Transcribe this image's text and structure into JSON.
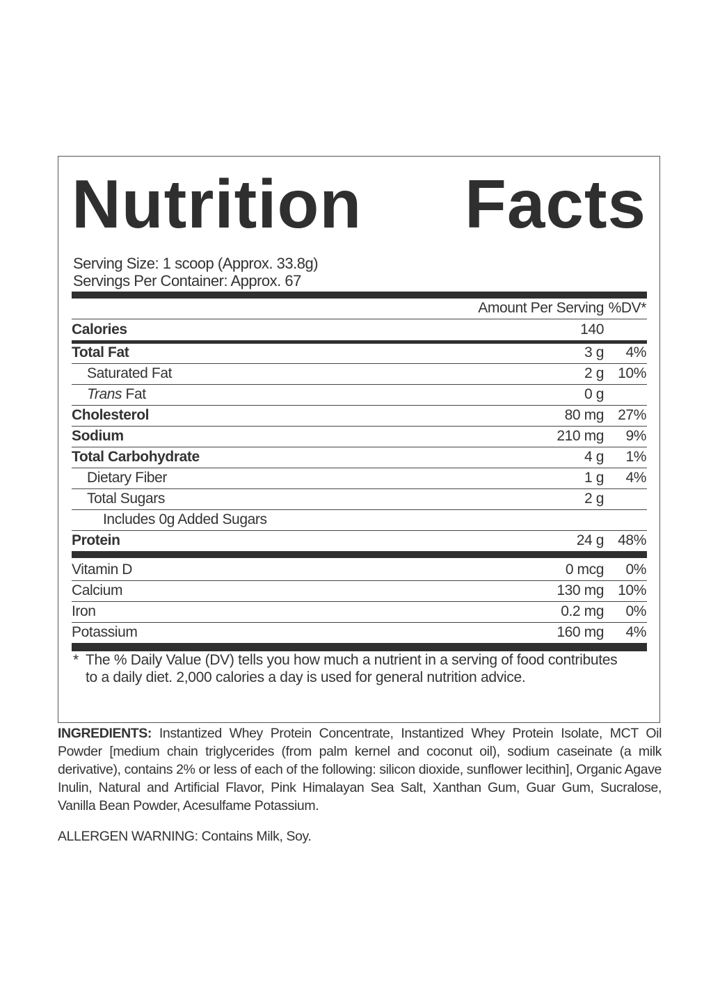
{
  "title": {
    "word1": "Nutrition",
    "word2": "Facts"
  },
  "serving_size": "Serving Size: 1 scoop (Approx. 33.8g)",
  "servings_per_container": "Servings Per Container: Approx. 67",
  "header": {
    "amount_per_serving": "Amount Per Serving",
    "dv": "%DV*"
  },
  "calories": {
    "name": "Calories",
    "amount": "140"
  },
  "nutrients": [
    {
      "name": "Total Fat",
      "amount": "3 g",
      "dv": "4%"
    },
    {
      "name": "Saturated Fat",
      "amount": "2 g",
      "dv": "10%"
    },
    {
      "name_italic": "Trans",
      "name": " Fat",
      "amount": "0 g",
      "dv": ""
    },
    {
      "name": "Cholesterol",
      "amount": "80 mg",
      "dv": "27%"
    },
    {
      "name": "Sodium",
      "amount": "210 mg",
      "dv": "9%"
    },
    {
      "name": "Total Carbohydrate",
      "amount": "4 g",
      "dv": "1%"
    },
    {
      "name": "Dietary Fiber",
      "amount": "1 g",
      "dv": "4%"
    },
    {
      "name": "Total Sugars",
      "amount": "2 g",
      "dv": ""
    },
    {
      "name": "Includes 0g Added Sugars",
      "amount": "",
      "dv": ""
    },
    {
      "name": "Protein",
      "amount": "24 g",
      "dv": "48%"
    }
  ],
  "vitamins": [
    {
      "name": "Vitamin D",
      "amount": "0 mcg",
      "dv": "0%"
    },
    {
      "name": "Calcium",
      "amount": "130 mg",
      "dv": "10%"
    },
    {
      "name": "Iron",
      "amount": "0.2 mg",
      "dv": "0%"
    },
    {
      "name": "Potassium",
      "amount": "160 mg",
      "dv": "4%"
    }
  ],
  "footnote": {
    "star": "*",
    "text": "The % Daily Value (DV) tells you how much a nutrient in a serving of food contributes to a daily diet. 2,000 calories a day is used for general nutrition advice."
  },
  "ingredients": {
    "label": "INGREDIENTS:",
    "text": " Instantized Whey Protein Concentrate, Instantized Whey Protein Isolate, MCT Oil Powder [medium chain triglycerides (from palm kernel and coconut oil), sodium caseinate (a milk derivative), contains 2% or less of each of the following: silicon dioxide, sunflower lecithin], Organic Agave Inulin, Natural and Artificial Flavor, Pink Himalayan Sea Salt, Xanthan Gum, Guar Gum, Sucralose, Vanilla Bean Powder, Acesulfame Potassium."
  },
  "allergen_warning": "ALLERGEN WARNING: Contains Milk, Soy."
}
